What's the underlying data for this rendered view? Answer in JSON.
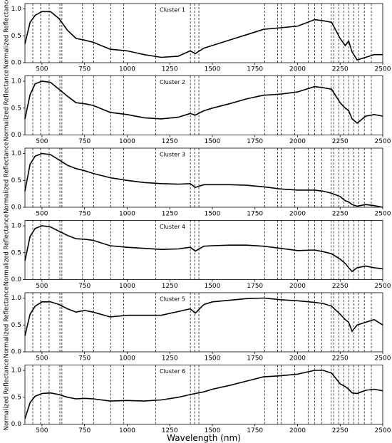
{
  "chart_data": [
    {
      "type": "line",
      "title": "Cluster 1",
      "ylabel": "Normalized Reflectance",
      "x": [
        400,
        430,
        460,
        500,
        550,
        600,
        650,
        700,
        750,
        800,
        900,
        1000,
        1100,
        1200,
        1300,
        1370,
        1400,
        1450,
        1500,
        1600,
        1700,
        1800,
        1900,
        2000,
        2100,
        2150,
        2200,
        2250,
        2280,
        2300,
        2320,
        2350,
        2400,
        2450,
        2500
      ],
      "values": [
        0.35,
        0.75,
        0.88,
        0.95,
        0.95,
        0.82,
        0.6,
        0.45,
        0.42,
        0.38,
        0.25,
        0.22,
        0.15,
        0.1,
        0.12,
        0.22,
        0.17,
        0.27,
        0.32,
        0.42,
        0.52,
        0.62,
        0.65,
        0.68,
        0.8,
        0.78,
        0.75,
        0.45,
        0.32,
        0.4,
        0.2,
        0.05,
        0.1,
        0.15,
        0.15
      ],
      "color": "#000000",
      "xlim": [
        400,
        2500
      ],
      "ylim": [
        0,
        1.1
      ],
      "xticks": [
        500,
        750,
        1000,
        1250,
        1500,
        1750,
        2000,
        2250,
        2500
      ],
      "yticks": [
        {
          "value": 0,
          "label": "0.0"
        },
        0.5,
        {
          "value": 1,
          "label": "1.0"
        }
      ],
      "vlines": [
        446,
        492,
        542,
        605,
        617,
        738,
        804,
        904,
        979,
        1167,
        1371,
        1396,
        1421,
        1808,
        1883,
        1904,
        1983,
        2062,
        2100,
        2142,
        2196,
        2212,
        2242,
        2271,
        2300,
        2329,
        2358,
        2392,
        2433
      ]
    },
    {
      "type": "line",
      "title": "Cluster 2",
      "ylabel": "Normalized Reflectance",
      "x": [
        400,
        430,
        460,
        500,
        550,
        600,
        650,
        700,
        750,
        800,
        900,
        1000,
        1100,
        1200,
        1300,
        1370,
        1400,
        1450,
        1500,
        1600,
        1700,
        1800,
        1900,
        2000,
        2100,
        2150,
        2200,
        2250,
        2280,
        2300,
        2320,
        2350,
        2400,
        2450,
        2500
      ],
      "values": [
        0.3,
        0.75,
        0.95,
        1.0,
        0.98,
        0.85,
        0.72,
        0.6,
        0.58,
        0.55,
        0.42,
        0.38,
        0.32,
        0.3,
        0.33,
        0.4,
        0.37,
        0.45,
        0.5,
        0.58,
        0.67,
        0.74,
        0.76,
        0.8,
        0.9,
        0.88,
        0.85,
        0.6,
        0.5,
        0.45,
        0.3,
        0.22,
        0.35,
        0.38,
        0.35
      ],
      "color": "#000000",
      "xlim": [
        400,
        2500
      ],
      "ylim": [
        0,
        1.1
      ],
      "xticks": [
        500,
        750,
        1000,
        1250,
        1500,
        1750,
        2000,
        2250,
        2500
      ],
      "yticks": [
        {
          "value": 0,
          "label": "0.0"
        },
        0.5,
        {
          "value": 1,
          "label": "1.0"
        }
      ],
      "vlines": [
        446,
        492,
        542,
        605,
        617,
        738,
        804,
        904,
        979,
        1167,
        1371,
        1396,
        1421,
        1808,
        1883,
        1904,
        1983,
        2062,
        2100,
        2142,
        2196,
        2212,
        2242,
        2271,
        2300,
        2329,
        2358,
        2392,
        2433
      ]
    },
    {
      "type": "line",
      "title": "Cluster 3",
      "ylabel": "Normalized Reflectance",
      "x": [
        400,
        430,
        460,
        500,
        550,
        600,
        650,
        700,
        750,
        800,
        900,
        1000,
        1100,
        1200,
        1300,
        1370,
        1400,
        1450,
        1500,
        1600,
        1700,
        1800,
        1900,
        2000,
        2100,
        2150,
        2200,
        2250,
        2280,
        2300,
        2320,
        2350,
        2400,
        2450,
        2500
      ],
      "values": [
        0.3,
        0.8,
        0.95,
        1.0,
        0.98,
        0.88,
        0.78,
        0.72,
        0.68,
        0.63,
        0.55,
        0.5,
        0.46,
        0.44,
        0.43,
        0.44,
        0.37,
        0.42,
        0.42,
        0.42,
        0.41,
        0.38,
        0.34,
        0.32,
        0.32,
        0.3,
        0.26,
        0.2,
        0.12,
        0.1,
        0.05,
        0.02,
        0.05,
        0.03,
        0.0
      ],
      "color": "#000000",
      "xlim": [
        400,
        2500
      ],
      "ylim": [
        0,
        1.1
      ],
      "xticks": [
        500,
        750,
        1000,
        1250,
        1500,
        1750,
        2000,
        2250,
        2500
      ],
      "yticks": [
        {
          "value": 0,
          "label": "0.0"
        },
        0.5,
        {
          "value": 1,
          "label": "1.0"
        }
      ],
      "vlines": [
        446,
        492,
        542,
        605,
        617,
        738,
        804,
        904,
        979,
        1167,
        1371,
        1396,
        1421,
        1808,
        1883,
        1904,
        1983,
        2062,
        2100,
        2142,
        2196,
        2212,
        2242,
        2271,
        2300,
        2329,
        2358,
        2392,
        2433
      ]
    },
    {
      "type": "line",
      "title": "Cluster 4",
      "ylabel": "Normalized Reflectance",
      "x": [
        400,
        430,
        460,
        500,
        550,
        600,
        650,
        700,
        750,
        800,
        900,
        1000,
        1100,
        1200,
        1300,
        1370,
        1400,
        1450,
        1500,
        1600,
        1700,
        1800,
        1900,
        2000,
        2100,
        2150,
        2200,
        2250,
        2280,
        2300,
        2320,
        2350,
        2400,
        2450,
        2500
      ],
      "values": [
        0.35,
        0.8,
        0.95,
        1.0,
        0.98,
        0.9,
        0.82,
        0.76,
        0.75,
        0.73,
        0.63,
        0.6,
        0.58,
        0.56,
        0.57,
        0.6,
        0.53,
        0.62,
        0.63,
        0.64,
        0.64,
        0.62,
        0.58,
        0.54,
        0.55,
        0.52,
        0.48,
        0.38,
        0.3,
        0.22,
        0.15,
        0.22,
        0.25,
        0.22,
        0.2
      ],
      "color": "#000000",
      "xlim": [
        400,
        2500
      ],
      "ylim": [
        0,
        1.1
      ],
      "xticks": [
        500,
        750,
        1000,
        1250,
        1500,
        1750,
        2000,
        2250,
        2500
      ],
      "yticks": [
        {
          "value": 0,
          "label": "0.0"
        },
        0.5,
        {
          "value": 1,
          "label": "1.0"
        }
      ],
      "vlines": [
        446,
        492,
        542,
        605,
        617,
        738,
        804,
        904,
        979,
        1167,
        1371,
        1396,
        1421,
        1808,
        1883,
        1904,
        1983,
        2062,
        2100,
        2142,
        2196,
        2212,
        2242,
        2271,
        2300,
        2329,
        2358,
        2392,
        2433
      ]
    },
    {
      "type": "line",
      "title": "Cluster 5",
      "ylabel": "Normalized Reflectance",
      "x": [
        400,
        430,
        460,
        500,
        550,
        600,
        650,
        700,
        750,
        800,
        900,
        1000,
        1100,
        1200,
        1300,
        1370,
        1400,
        1450,
        1500,
        1600,
        1700,
        1800,
        1900,
        2000,
        2100,
        2150,
        2200,
        2250,
        2280,
        2300,
        2320,
        2350,
        2400,
        2450,
        2500
      ],
      "values": [
        0.3,
        0.7,
        0.85,
        0.93,
        0.93,
        0.88,
        0.8,
        0.74,
        0.77,
        0.74,
        0.65,
        0.68,
        0.68,
        0.68,
        0.75,
        0.8,
        0.72,
        0.88,
        0.93,
        0.96,
        0.99,
        1.0,
        0.97,
        0.95,
        0.92,
        0.9,
        0.85,
        0.7,
        0.6,
        0.55,
        0.38,
        0.5,
        0.55,
        0.6,
        0.5
      ],
      "color": "#000000",
      "xlim": [
        400,
        2500
      ],
      "ylim": [
        0,
        1.1
      ],
      "xticks": [
        500,
        750,
        1000,
        1250,
        1500,
        1750,
        2000,
        2250,
        2500
      ],
      "yticks": [
        {
          "value": 0,
          "label": "0.0"
        },
        0.5,
        {
          "value": 1,
          "label": "1.0"
        }
      ],
      "vlines": [
        446,
        492,
        542,
        605,
        617,
        738,
        804,
        904,
        979,
        1167,
        1371,
        1396,
        1421,
        1808,
        1883,
        1904,
        1983,
        2062,
        2100,
        2142,
        2196,
        2212,
        2242,
        2271,
        2300,
        2329,
        2358,
        2392,
        2433
      ]
    },
    {
      "type": "line",
      "title": "Cluster 6",
      "ylabel": "Normalized Reflectance",
      "xlabel": "Wavelength  (nm)",
      "x": [
        400,
        430,
        460,
        500,
        550,
        600,
        650,
        700,
        750,
        800,
        900,
        1000,
        1100,
        1200,
        1300,
        1370,
        1400,
        1450,
        1500,
        1600,
        1700,
        1800,
        1900,
        2000,
        2100,
        2150,
        2200,
        2250,
        2280,
        2300,
        2320,
        2350,
        2400,
        2450,
        2500
      ],
      "values": [
        0.1,
        0.4,
        0.52,
        0.57,
        0.58,
        0.55,
        0.5,
        0.47,
        0.48,
        0.47,
        0.43,
        0.44,
        0.43,
        0.45,
        0.5,
        0.55,
        0.57,
        0.6,
        0.65,
        0.72,
        0.8,
        0.88,
        0.9,
        0.93,
        1.0,
        1.0,
        0.95,
        0.75,
        0.7,
        0.65,
        0.58,
        0.57,
        0.63,
        0.65,
        0.62
      ],
      "color": "#000000",
      "xlim": [
        400,
        2500
      ],
      "ylim": [
        0,
        1.1
      ],
      "xticks": [
        500,
        750,
        1000,
        1250,
        1500,
        1750,
        2000,
        2250,
        2500
      ],
      "yticks": [
        {
          "value": 0,
          "label": "0.0"
        },
        0.5,
        {
          "value": 1,
          "label": "1.0"
        }
      ],
      "vlines": [
        446,
        492,
        542,
        605,
        617,
        738,
        804,
        904,
        979,
        1167,
        1371,
        1396,
        1421,
        1808,
        1883,
        1904,
        1983,
        2062,
        2100,
        2142,
        2196,
        2212,
        2242,
        2271,
        2300,
        2329,
        2358,
        2392,
        2433
      ]
    }
  ]
}
